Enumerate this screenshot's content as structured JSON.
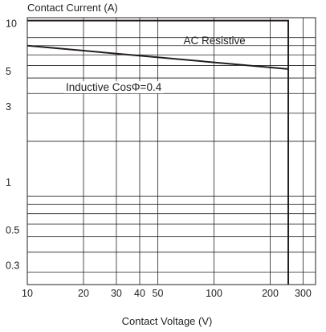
{
  "chart_data": {
    "type": "line",
    "ylabel": "Contact Current (A)",
    "xlabel": "Contact Voltage (V)",
    "x_scale": "log",
    "y_scale": "log",
    "xlim": [
      10,
      350
    ],
    "ylim": [
      0.25,
      12
    ],
    "x_ticks": [
      10,
      20,
      30,
      40,
      50,
      100,
      200,
      300
    ],
    "y_ticks": [
      0.3,
      0.5,
      1,
      3,
      5,
      10
    ],
    "x_gridlines": [
      20,
      30,
      40,
      50,
      100,
      200,
      300
    ],
    "y_gridlines": [
      0.3,
      0.4,
      0.5,
      0.6,
      0.7,
      0.8,
      0.9,
      2,
      3,
      4,
      5,
      6,
      7,
      8,
      9
    ],
    "grid": true,
    "series": [
      {
        "name": "AC Resistive",
        "color": "#231f20",
        "x": [
          10,
          250,
          250
        ],
        "y": [
          11.5,
          11.5,
          0.25
        ]
      },
      {
        "name": "Inductive CosΦ=0.4",
        "color": "#231f20",
        "x": [
          10,
          250
        ],
        "y": [
          8.0,
          5.7
        ]
      }
    ]
  }
}
